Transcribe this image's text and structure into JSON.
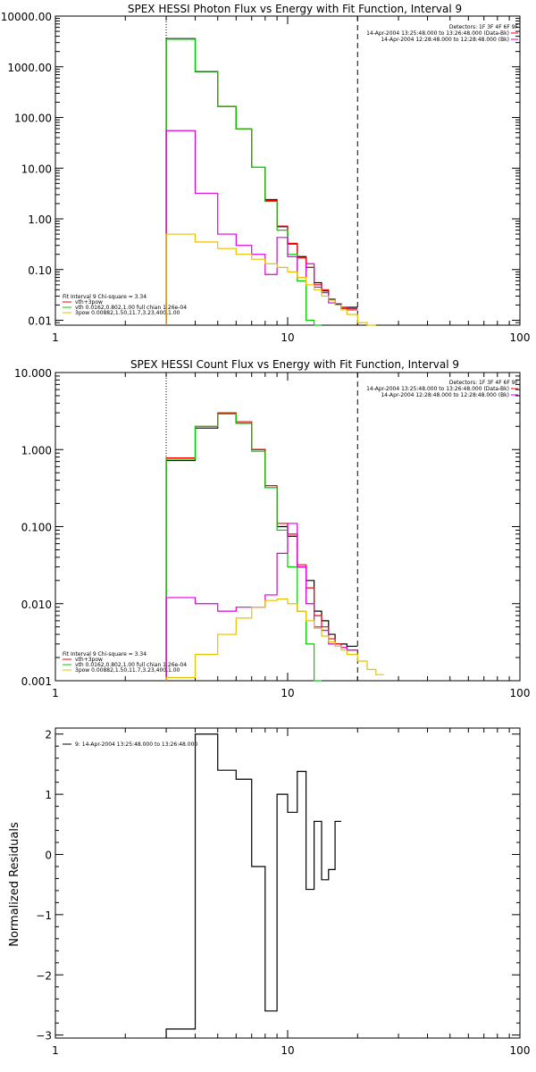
{
  "panels": [
    {
      "title": "SPEX HESSI Photon Flux vs Energy with Fit Function, Interval 9",
      "xlim": [
        1,
        100
      ],
      "ylim": [
        0.008,
        10000
      ],
      "ylog": true,
      "xticks": [
        1,
        10,
        100
      ],
      "xtick_labels": [
        "1",
        "10",
        "100"
      ],
      "yticks": [
        10000,
        1000,
        100,
        10,
        1,
        0.1,
        0.01
      ],
      "ytick_labels": [
        "10000.00",
        "1000.00",
        "100.00",
        "10.00",
        "1.00",
        "0.10",
        "0.01"
      ],
      "vlines": [
        {
          "x": 3.0,
          "style": "dotted"
        },
        {
          "x": 20.0,
          "style": "dashed"
        }
      ],
      "info_lines": [
        "Detectors: 1F 3F 4F 6F 9F",
        "14-Apr-2004 13:25:48.000 to 13:26:48.000 (Data-Bk)",
        "14-Apr-2004 12:28:48.000 to 12:28:48.000 (Bk)"
      ],
      "legend": {
        "header": "Fit Interval 9   Chi-square = 3.34",
        "entries": [
          "vth+3pow",
          "vth 0.0162,0.802,1.00  full chian 1.26e-04",
          "3pow 0.00882,1.50,11.7,3.23,400,1.00"
        ],
        "colors": [
          "#ff0000",
          "#00cc00",
          "#e8c000"
        ]
      }
    },
    {
      "title": "SPEX HESSI Count Flux vs Energy with Fit Function, Interval 9",
      "xlim": [
        1,
        100
      ],
      "ylim": [
        0.001,
        10
      ],
      "ylog": true,
      "xticks": [
        1,
        10,
        100
      ],
      "xtick_labels": [
        "1",
        "10",
        "100"
      ],
      "yticks": [
        10,
        1,
        0.1,
        0.01,
        0.001
      ],
      "ytick_labels": [
        "10.000",
        "1.000",
        "0.100",
        "0.010",
        "0.001"
      ],
      "vlines": [
        {
          "x": 3.0,
          "style": "dotted"
        },
        {
          "x": 20.0,
          "style": "dashed"
        }
      ],
      "info_lines": [
        "Detectors: 1F 3F 4F 6F 9F",
        "14-Apr-2004 13:25:48.000 to 13:26:48.000 (Data-Bk)",
        "14-Apr-2004 12:28:48.000 to 12:28:48.000 (Bk)"
      ],
      "legend": {
        "header": "Fit Interval 9   Chi-square = 3.34",
        "entries": [
          "vth+3pow",
          "vth 0.0162,0.802,1.00  full chian 1.26e-04",
          "3pow 0.00882,1.50,11.7,3.23,400,1.00"
        ],
        "colors": [
          "#ff0000",
          "#00cc00",
          "#e8c000"
        ]
      }
    },
    {
      "title": "",
      "xlim": [
        1,
        100
      ],
      "ylim": [
        -3.05,
        2.1
      ],
      "ylog": false,
      "ylabel": "Normalized Residuals",
      "xticks": [
        1,
        10,
        100
      ],
      "xtick_labels": [
        "1",
        "10",
        "100"
      ],
      "yticks": [
        2,
        1,
        0,
        -1,
        -2,
        -3
      ],
      "ytick_labels": [
        "2",
        "1",
        "0",
        "−1",
        "−2",
        "−3"
      ],
      "legend_line": "9: 14-Apr-2004 13:25:48.000 to 13:26:48.000"
    }
  ],
  "chart_data": [
    {
      "type": "line",
      "title": "SPEX HESSI Photon Flux vs Energy with Fit Function, Interval 9",
      "xscale": "log",
      "yscale": "log",
      "xlim": [
        1,
        100
      ],
      "ylim": [
        0.008,
        10000
      ],
      "edges": [
        3,
        4,
        5,
        6,
        7,
        8,
        9,
        10,
        11,
        12,
        13,
        14,
        15,
        16,
        17,
        18,
        20,
        22,
        24
      ],
      "series": [
        {
          "name": "",
          "color": "#000000",
          "values": [
            3600,
            800,
            165,
            60,
            10.5,
            2.4,
            0.7,
            0.32,
            0.18,
            0.11,
            0.055,
            0.038,
            0.026,
            0.021,
            0.018,
            0.018,
            null,
            null
          ]
        },
        {
          "name": "vth+3pow",
          "color": "#ff0000",
          "values": [
            3500,
            810,
            166,
            60,
            10.5,
            2.3,
            0.72,
            0.33,
            0.17,
            0.11,
            0.05,
            0.04,
            0.025,
            0.02,
            0.018,
            0.016,
            null,
            null
          ]
        },
        {
          "name": "vth 0.0162,0.802,1.00  full chian 1.26e-04",
          "color": "#00cc00",
          "values": [
            3500,
            810,
            165,
            60,
            10.5,
            2.2,
            0.6,
            0.2,
            0.06,
            0.01,
            0.001,
            null,
            null,
            null,
            null,
            null,
            null,
            null
          ]
        },
        {
          "name": "",
          "color": "#dd00dd",
          "values": [
            55,
            3.2,
            0.5,
            0.3,
            0.2,
            0.08,
            0.43,
            0.18,
            0.07,
            0.13,
            0.045,
            0.035,
            0.022,
            0.02,
            0.017,
            0.017,
            null,
            null
          ]
        },
        {
          "name": "3pow 0.00882,1.50,11.7,3.23,400,1.00",
          "color": "#e8c000",
          "values": [
            0.5,
            0.35,
            0.26,
            0.2,
            0.16,
            0.13,
            0.11,
            0.09,
            0.07,
            0.05,
            0.04,
            0.03,
            0.025,
            0.02,
            0.016,
            0.013,
            0.009,
            0.006
          ]
        }
      ]
    },
    {
      "type": "line",
      "title": "SPEX HESSI Count Flux vs Energy with Fit Function, Interval 9",
      "xscale": "log",
      "yscale": "log",
      "xlim": [
        1,
        100
      ],
      "ylim": [
        0.001,
        10
      ],
      "edges": [
        3,
        4,
        5,
        6,
        7,
        8,
        9,
        10,
        11,
        12,
        13,
        14,
        15,
        16,
        17,
        18,
        20,
        22,
        24,
        26
      ],
      "series": [
        {
          "name": "",
          "color": "#000000",
          "values": [
            0.72,
            1.9,
            2.9,
            2.2,
            1.0,
            0.32,
            0.1,
            0.075,
            0.03,
            0.02,
            0.008,
            0.006,
            0.004,
            0.003,
            0.003,
            0.0028,
            null,
            null,
            null
          ]
        },
        {
          "name": "vth+3pow",
          "color": "#ff0000",
          "values": [
            0.78,
            2.0,
            3.0,
            2.3,
            1.0,
            0.34,
            0.11,
            0.08,
            0.032,
            0.016,
            0.007,
            0.005,
            0.0035,
            0.003,
            0.0027,
            0.0025,
            null,
            null,
            null
          ]
        },
        {
          "name": "vth 0.0162,0.802,1.00  full chian 1.26e-04",
          "color": "#00cc00",
          "values": [
            0.75,
            2.0,
            2.9,
            2.2,
            0.95,
            0.32,
            0.09,
            0.03,
            0.008,
            0.003,
            0.0009,
            null,
            null,
            null,
            null,
            null,
            null,
            null,
            null
          ]
        },
        {
          "name": "",
          "color": "#dd00dd",
          "values": [
            0.012,
            0.01,
            0.008,
            0.009,
            0.009,
            0.013,
            0.045,
            0.11,
            0.03,
            0.01,
            0.005,
            0.0045,
            0.003,
            0.0028,
            0.0027,
            0.0025,
            null,
            null,
            null
          ]
        },
        {
          "name": "3pow 0.00882,1.50,11.7,3.23,400,1.00",
          "color": "#e8c000",
          "values": [
            0.0011,
            0.0022,
            0.004,
            0.0065,
            0.009,
            0.011,
            0.0115,
            0.01,
            0.008,
            0.006,
            0.0048,
            0.0038,
            0.0032,
            0.0028,
            0.0025,
            0.0022,
            0.0018,
            0.0014,
            0.0012
          ]
        }
      ]
    },
    {
      "type": "line",
      "title": "",
      "xscale": "log",
      "yscale": "linear",
      "ylabel": "Normalized Residuals",
      "xlim": [
        1,
        100
      ],
      "ylim": [
        -3.05,
        2.1
      ],
      "edges": [
        3,
        4,
        5,
        6,
        7,
        8,
        9,
        10,
        11,
        12,
        13,
        14,
        15,
        16,
        17,
        18,
        20
      ],
      "series": [
        {
          "name": "9: 14-Apr-2004 13:25:48.000 to 13:26:48.000",
          "color": "#000000",
          "values": [
            -2.9,
            2.0,
            1.4,
            1.25,
            -0.2,
            -2.6,
            1.0,
            0.7,
            1.38,
            -0.58,
            0.55,
            -0.42,
            -0.25,
            0.55,
            null,
            null
          ]
        }
      ]
    }
  ]
}
